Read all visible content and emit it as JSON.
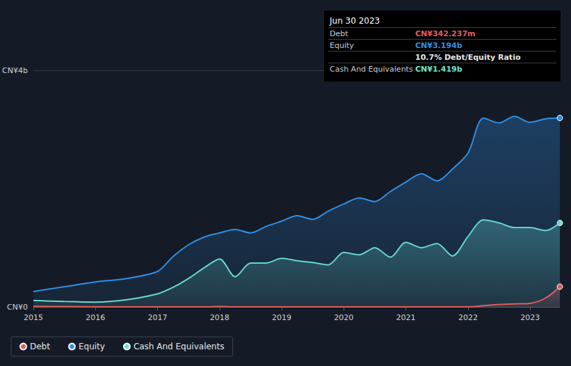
{
  "chart_data": {
    "type": "area",
    "x": [
      2015,
      2015.5,
      2016,
      2016.5,
      2017,
      2017.25,
      2017.5,
      2017.75,
      2018,
      2018.25,
      2018.5,
      2018.75,
      2019,
      2019.25,
      2019.5,
      2019.75,
      2020,
      2020.25,
      2020.5,
      2020.75,
      2021,
      2021.25,
      2021.5,
      2021.75,
      2022,
      2022.25,
      2022.5,
      2022.75,
      2023,
      2023.25,
      2023.48
    ],
    "series": [
      {
        "name": "Debt",
        "color": "#e05c5c",
        "values": [
          0.01,
          0.005,
          0,
          0,
          0,
          0,
          0,
          0,
          0.005,
          0,
          0,
          0,
          0,
          0,
          0,
          0,
          0,
          0,
          0,
          0,
          0,
          0,
          0,
          0,
          0,
          0.02,
          0.04,
          0.05,
          0.06,
          0.15,
          0.342
        ]
      },
      {
        "name": "Equity",
        "color": "#2f8fe6",
        "values": [
          0.26,
          0.34,
          0.42,
          0.48,
          0.6,
          0.85,
          1.05,
          1.18,
          1.25,
          1.31,
          1.25,
          1.36,
          1.45,
          1.54,
          1.48,
          1.62,
          1.74,
          1.84,
          1.78,
          1.95,
          2.11,
          2.25,
          2.13,
          2.33,
          2.6,
          3.19,
          3.11,
          3.22,
          3.12,
          3.18,
          3.194
        ]
      },
      {
        "name": "Cash And Equivalents",
        "color": "#6fe3cc",
        "values": [
          0.11,
          0.09,
          0.08,
          0.12,
          0.22,
          0.33,
          0.48,
          0.66,
          0.81,
          0.51,
          0.74,
          0.74,
          0.82,
          0.78,
          0.75,
          0.71,
          0.92,
          0.88,
          1.0,
          0.84,
          1.09,
          1.0,
          1.07,
          0.86,
          1.19,
          1.47,
          1.42,
          1.34,
          1.34,
          1.29,
          1.419
        ]
      }
    ],
    "xlim": [
      2015,
      2023.48
    ],
    "xticks": [
      2015,
      2016,
      2017,
      2018,
      2019,
      2020,
      2021,
      2022,
      2023
    ],
    "ylim": [
      0,
      4
    ],
    "yticks": [
      {
        "value": 0,
        "label": "CN¥0"
      },
      {
        "value": 4,
        "label": "CN¥4b"
      }
    ],
    "grid": true,
    "legend": "bottom-left",
    "annotations": {
      "date": "Jun 30 2023",
      "rows": [
        {
          "label": "Debt",
          "value": "CN¥342.237m"
        },
        {
          "label": "Equity",
          "value": "CN¥3.194b"
        },
        {
          "value": "10.7% Debt/Equity Ratio"
        },
        {
          "label": "Cash And Equivalents",
          "value": "CN¥1.419b"
        }
      ]
    }
  }
}
